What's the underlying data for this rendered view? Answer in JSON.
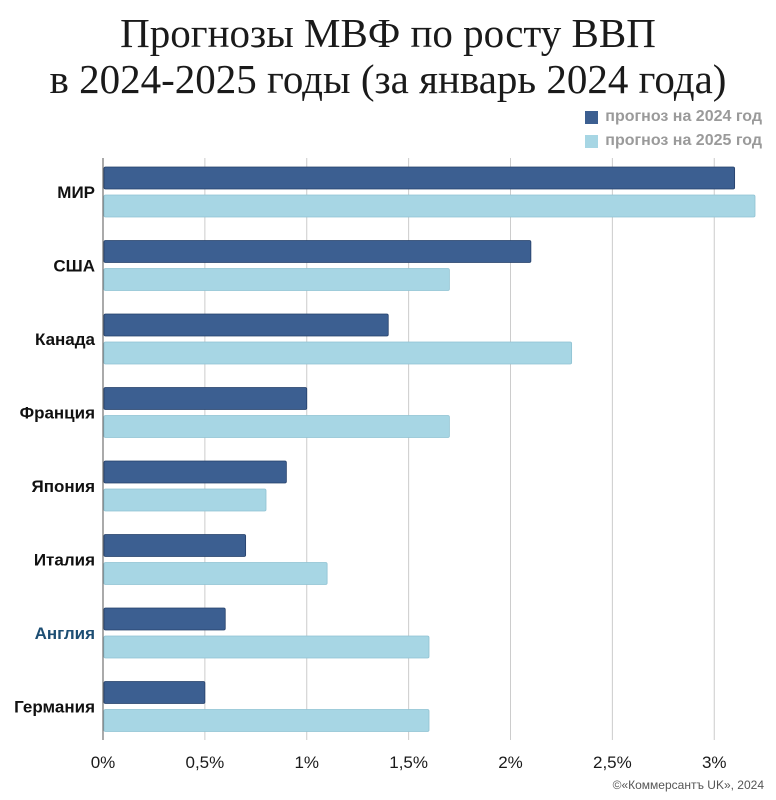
{
  "title": {
    "line1": "Прогнозы МВФ по росту ВВП",
    "line2": "в 2024-2025 годы (за январь 2024 года)"
  },
  "credit": "©«Коммерсантъ UK», 2024",
  "chart_data": {
    "type": "bar",
    "orientation": "horizontal",
    "title": "Прогнозы МВФ по росту ВВП в 2024-2025 годы (за январь 2024 года)",
    "categories": [
      "МИР",
      "США",
      "Канада",
      "Франция",
      "Япония",
      "Италия",
      "Англия",
      "Германия"
    ],
    "highlight_category": "Англия",
    "series": [
      {
        "name": "прогноз на 2024 год",
        "color": "#3c5f91",
        "values": [
          3.1,
          2.1,
          1.4,
          1.0,
          0.9,
          0.7,
          0.6,
          0.5
        ]
      },
      {
        "name": "прогноз на 2025 год",
        "color": "#a7d6e4",
        "values": [
          3.2,
          1.7,
          2.3,
          1.7,
          0.8,
          1.1,
          1.6,
          1.6
        ]
      }
    ],
    "xlim": [
      0,
      3.2
    ],
    "xticks": [
      0,
      0.5,
      1,
      1.5,
      2,
      2.5,
      3
    ],
    "xtick_labels": [
      "0%",
      "0,5%",
      "1%",
      "1,5%",
      "2%",
      "2,5%",
      "3%"
    ],
    "grid": true,
    "legend_position": "top-right",
    "colors": {
      "highlight_label": "#1d4e73",
      "label": "#111111",
      "grid": "#cccccc"
    }
  }
}
